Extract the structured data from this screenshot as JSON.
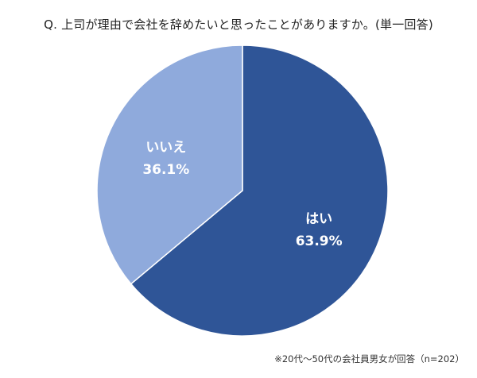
{
  "chart_data": {
    "type": "pie",
    "title": "Q. 上司が理由で会社を辞めたいと思ったことがありますか。(単一回答)",
    "slices": [
      {
        "label": "はい",
        "value": 63.9,
        "value_label": "63.9%",
        "color": "#2f5597"
      },
      {
        "label": "いいえ",
        "value": 36.1,
        "value_label": "36.1%",
        "color": "#8faadc"
      }
    ],
    "start": "12 o'clock",
    "direction": "clockwise",
    "legend": "none",
    "note": "※20代～50代の会社員男女が回答（n=202）"
  }
}
